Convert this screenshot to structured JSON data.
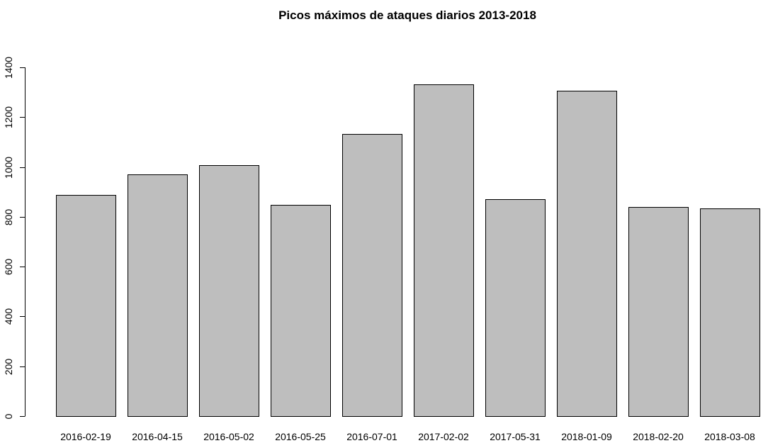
{
  "chart_data": {
    "type": "bar",
    "title": "Picos máximos de ataques diarios 2013-2018",
    "xlabel": "",
    "ylabel": "",
    "categories": [
      "2016-02-19",
      "2016-04-15",
      "2016-05-02",
      "2016-05-25",
      "2016-07-01",
      "2017-02-02",
      "2017-05-31",
      "2018-01-09",
      "2018-02-20",
      "2018-03-08"
    ],
    "values": [
      887,
      970,
      1006,
      848,
      1133,
      1331,
      870,
      1306,
      840,
      833
    ],
    "ylim": [
      0,
      1400
    ],
    "yticks": [
      "0",
      "200",
      "400",
      "600",
      "800",
      "1000",
      "1200",
      "1400"
    ],
    "bar_color": "#bebebe",
    "grid": false,
    "legend": "none"
  }
}
